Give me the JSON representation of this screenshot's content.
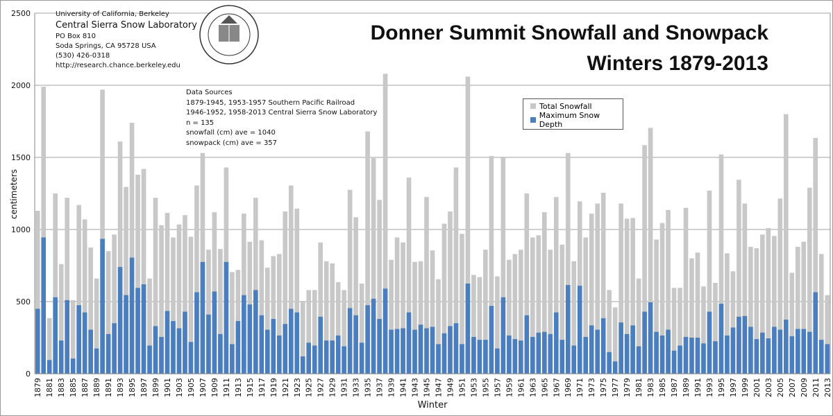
{
  "header": {
    "institution": "University of California, Berkeley",
    "lab": "Central Sierra Snow Laboratory",
    "address1": "PO Box 810",
    "address2": "Soda Springs, CA 95728 USA",
    "phone": "(530) 426-0318",
    "url": "http://research.chance.berkeley.edu",
    "seal_text": "THE UNIVERSITY OF CALIFORNIA 1868"
  },
  "sources": {
    "heading": "Data Sources",
    "line1": "1879-1945, 1953-1957 Southern Pacific Railroad",
    "line2": "1946-1952, 1958-2013 Central Sierra Snow Laboratory",
    "n": "n = 135",
    "snowfall_ave": "snowfall (cm) ave = 1040",
    "snowpack_ave": "snowpack (cm) ave = 357"
  },
  "colors": {
    "snowfall": "#c8c8c8",
    "depth": "#4a7ebf",
    "grid": "#c0c0c0"
  },
  "chart_data": {
    "type": "bar",
    "title": "Donner Summit Snowfall and Snowpack",
    "subtitle": "Winters 1879-2013",
    "xlabel": "Winter",
    "ylabel": "centimeters",
    "ylim": [
      0,
      2500
    ],
    "yticks": [
      0,
      500,
      1000,
      1500,
      2000,
      2500
    ],
    "grid": true,
    "overlapping": true,
    "legend_position": "top-right",
    "x_start": 1879,
    "x_end": 2013,
    "series": [
      {
        "name": "Total Snowfall",
        "values": [
          1130,
          1990,
          385,
          1250,
          760,
          1220,
          510,
          1170,
          1070,
          875,
          660,
          1970,
          850,
          965,
          1610,
          1295,
          1740,
          1380,
          1420,
          660,
          1220,
          1030,
          1115,
          945,
          1035,
          1100,
          950,
          1305,
          1530,
          860,
          1120,
          865,
          1430,
          705,
          720,
          1110,
          915,
          1220,
          925,
          735,
          815,
          830,
          1125,
          1305,
          1145,
          505,
          580,
          580,
          910,
          780,
          765,
          635,
          580,
          1275,
          1085,
          625,
          1680,
          1495,
          1205,
          2080,
          790,
          945,
          910,
          1360,
          775,
          780,
          1225,
          855,
          655,
          1040,
          1125,
          1430,
          970,
          2060,
          685,
          670,
          860,
          1510,
          675,
          1505,
          790,
          830,
          860,
          1250,
          945,
          960,
          1120,
          860,
          1225,
          895,
          1530,
          780,
          1195,
          945,
          1110,
          1180,
          1255,
          580,
          460,
          1180,
          1075,
          1080,
          660,
          1585,
          1705,
          930,
          1045,
          1135,
          595,
          595,
          1150,
          800,
          840,
          605,
          1270,
          630,
          1520,
          835,
          710,
          1345,
          1180,
          880,
          870,
          965,
          1010,
          955,
          1215,
          1800,
          700,
          880,
          915,
          1290,
          1635,
          830,
          545
        ]
      },
      {
        "name": "Maximum Snow Depth",
        "values": [
          450,
          945,
          95,
          530,
          230,
          510,
          105,
          475,
          425,
          305,
          175,
          935,
          275,
          350,
          740,
          545,
          805,
          595,
          620,
          195,
          330,
          255,
          435,
          365,
          315,
          430,
          220,
          565,
          775,
          410,
          570,
          275,
          775,
          205,
          365,
          545,
          480,
          580,
          405,
          305,
          380,
          265,
          345,
          450,
          425,
          120,
          215,
          195,
          395,
          230,
          230,
          265,
          190,
          455,
          405,
          215,
          475,
          520,
          380,
          590,
          305,
          310,
          315,
          425,
          305,
          340,
          315,
          325,
          205,
          280,
          330,
          350,
          205,
          625,
          255,
          235,
          235,
          470,
          175,
          530,
          265,
          240,
          230,
          405,
          255,
          285,
          290,
          275,
          425,
          235,
          615,
          195,
          610,
          255,
          335,
          305,
          385,
          150,
          85,
          355,
          275,
          335,
          190,
          430,
          495,
          290,
          265,
          305,
          160,
          195,
          255,
          250,
          250,
          210,
          430,
          225,
          485,
          265,
          320,
          395,
          400,
          325,
          240,
          285,
          245,
          325,
          305,
          375,
          260,
          310,
          310,
          290,
          565,
          235,
          205
        ]
      }
    ]
  }
}
